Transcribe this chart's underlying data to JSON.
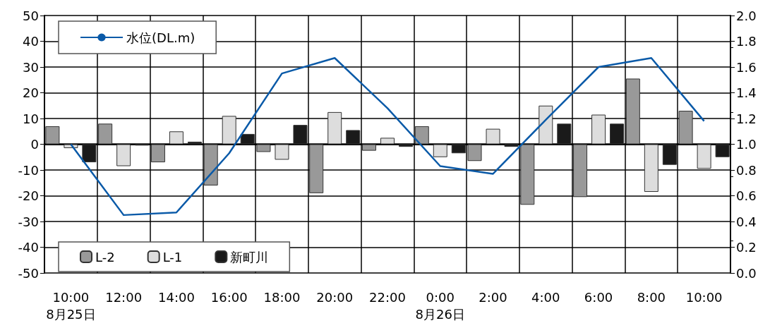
{
  "chart_data": {
    "type": "bar",
    "categories": [
      "10:00\n8月25日",
      "12:00",
      "14:00",
      "16:00",
      "18:00",
      "20:00",
      "22:00",
      "0:00\n8月26日",
      "2:00",
      "4:00",
      "6:00",
      "8:00",
      "10:00"
    ],
    "series": [
      {
        "name": "水位(DL.m)",
        "type": "line",
        "axis": "y2",
        "color": "#0a5aa8",
        "values": [
          1.0,
          0.45,
          0.47,
          0.93,
          1.55,
          1.67,
          1.28,
          0.83,
          0.77,
          1.19,
          1.6,
          1.67,
          1.18
        ]
      },
      {
        "name": "L-2",
        "color": "#999999",
        "values": [
          7,
          8,
          -7,
          -16,
          -3,
          -19,
          -2.5,
          7,
          -6.5,
          -23.5,
          -20.5,
          25.5,
          13
        ]
      },
      {
        "name": "L-1",
        "color": "#dddddd",
        "values": [
          -1.5,
          -8.5,
          5,
          11,
          -6,
          12.5,
          2.5,
          -5,
          6,
          15,
          11.5,
          -18.5,
          -9.5
        ]
      },
      {
        "name": "新町川",
        "color": "#1a1a1a",
        "values": [
          -7,
          -0.5,
          1,
          4,
          7.5,
          5.5,
          -1,
          -3.5,
          -1,
          8,
          8,
          -8,
          -5
        ]
      }
    ],
    "ylim": [
      -50,
      50
    ],
    "yticks": [
      -50,
      -40,
      -30,
      -20,
      -10,
      0,
      10,
      20,
      30,
      40,
      50
    ],
    "y2lim": [
      0,
      2
    ],
    "y2ticks": [
      {
        "value": 0,
        "label": "0.0"
      },
      {
        "value": 0.2,
        "label": "0.2"
      },
      {
        "value": 0.4,
        "label": "0.4"
      },
      {
        "value": 0.6,
        "label": "0.6"
      },
      {
        "value": 0.8,
        "label": "0.8"
      },
      {
        "value": 1,
        "label": "1.0"
      },
      {
        "value": 1.2,
        "label": "1.2"
      },
      {
        "value": 1.4,
        "label": "1.4"
      },
      {
        "value": 1.6,
        "label": "1.6"
      },
      {
        "value": 1.8,
        "label": "1.8"
      },
      {
        "value": 2,
        "label": "2.0"
      }
    ],
    "grid": true,
    "legend": "left"
  }
}
